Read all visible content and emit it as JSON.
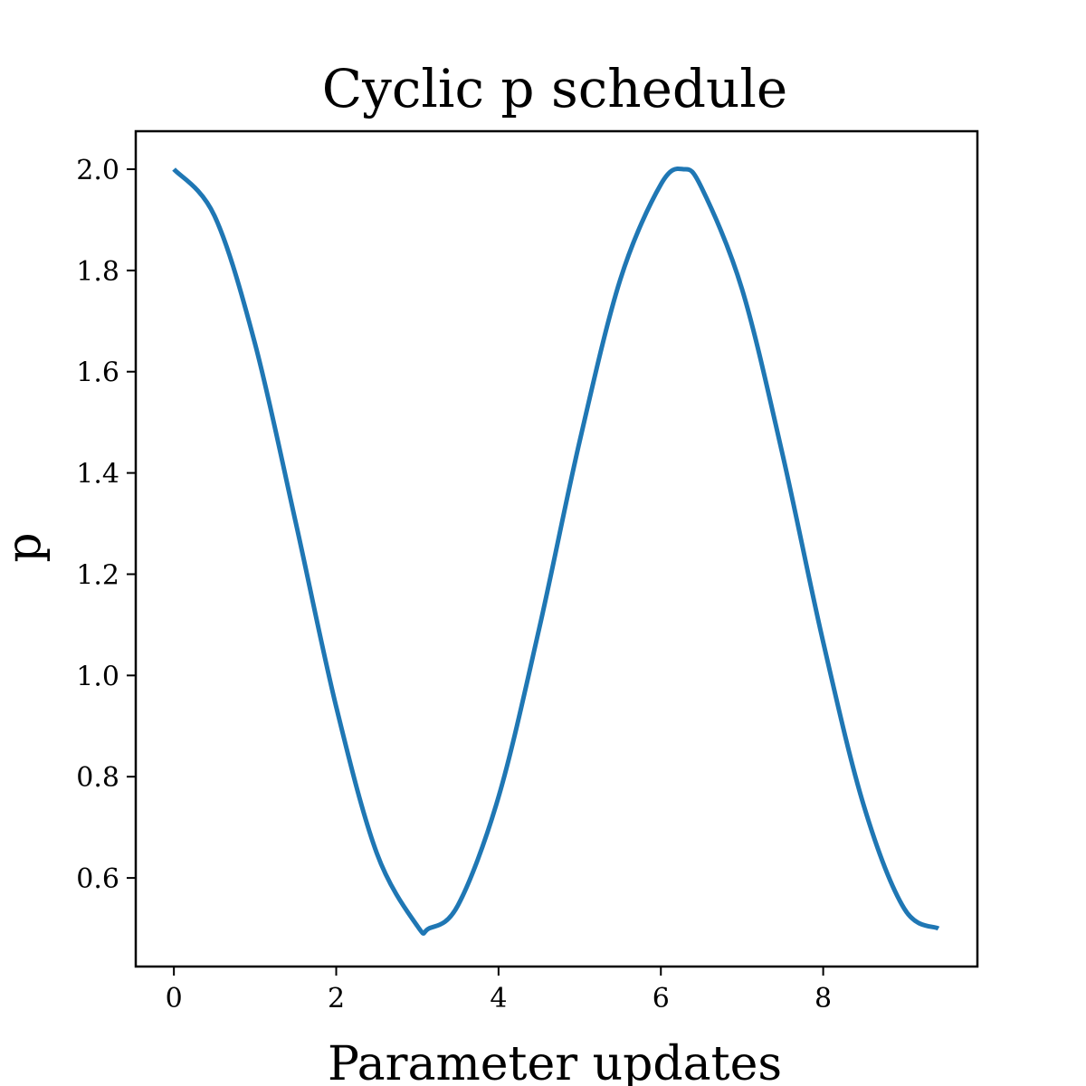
{
  "chart_data": {
    "type": "line",
    "title": "Cyclic p schedule",
    "xlabel": "Parameter updates",
    "ylabel": "p",
    "xlim": [
      -0.47,
      9.9
    ],
    "ylim": [
      0.425,
      2.075
    ],
    "xticks": [
      0,
      2,
      4,
      6,
      8
    ],
    "xtick_labels": [
      "0",
      "2",
      "4",
      "6",
      "8"
    ],
    "yticks": [
      0.6,
      0.8,
      1.0,
      1.2,
      1.4,
      1.6,
      1.8,
      2.0
    ],
    "ytick_labels": [
      "0.6",
      "0.8",
      "1.0",
      "1.2",
      "1.4",
      "1.6",
      "1.8",
      "2.0"
    ],
    "grid": false,
    "series": [
      {
        "color": "#1f77b4",
        "x": [
          0,
          0.5,
          1.0,
          1.5,
          2.0,
          2.5,
          3.0,
          3.14,
          3.5,
          4.0,
          4.5,
          5.0,
          5.5,
          6.0,
          6.28,
          6.5,
          7.0,
          7.5,
          8.0,
          8.5,
          9.0,
          9.42
        ],
        "y": [
          2.0,
          1.908,
          1.655,
          1.303,
          0.938,
          0.649,
          0.505,
          0.5,
          0.546,
          0.76,
          1.092,
          1.463,
          1.782,
          1.97,
          2.0,
          1.964,
          1.763,
          1.436,
          1.066,
          0.743,
          0.539,
          0.5
        ]
      }
    ]
  }
}
